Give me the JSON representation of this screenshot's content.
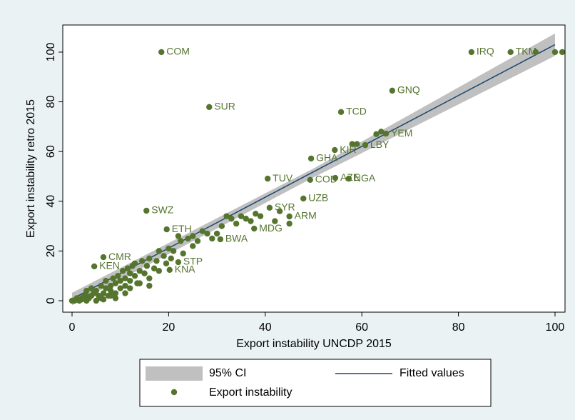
{
  "chart_data": {
    "type": "scatter",
    "x_label": "Export instability UNCDP 2015",
    "y_label": "Export instability retro 2015",
    "xlim": [
      -1.92,
      102.07
    ],
    "ylim": [
      -4.6,
      110.9
    ],
    "xticks": [
      0,
      20,
      40,
      60,
      80,
      100
    ],
    "yticks": [
      0,
      20,
      40,
      60,
      80,
      100
    ],
    "grid": false,
    "series": [
      {
        "name": "95% CI",
        "color": "#c0c0c0",
        "x": [
          0,
          50,
          100
        ],
        "lower": [
          -1.8,
          49.6,
          98.5
        ],
        "upper": [
          3.2,
          53.2,
          107.5
        ]
      },
      {
        "name": "Fitted values",
        "color": "#1a476f",
        "x": [
          0,
          100
        ],
        "values": [
          0.7,
          103
        ]
      },
      {
        "name": "Export instability",
        "color": "#55752f",
        "x": [
          18.5,
          28.4,
          82.7,
          90.8,
          66.3,
          55.7,
          54.4,
          49.5,
          60.7,
          65,
          40.5,
          49.3,
          54.5,
          57.3,
          47.9,
          15.4,
          40.9,
          45,
          37.7,
          30.7,
          19.6,
          6.5,
          4.6,
          22,
          20.2,
          0,
          0.5,
          1,
          1.5,
          2,
          2.5,
          3,
          3,
          3.5,
          4,
          4,
          4.5,
          5,
          5,
          5.5,
          6,
          6,
          6.5,
          7,
          7,
          7.5,
          8,
          8,
          8.5,
          9,
          9,
          9.5,
          10,
          10,
          10.5,
          11,
          11,
          11.5,
          12,
          12,
          12.5,
          13,
          13,
          13.5,
          14,
          14.5,
          15,
          15.5,
          16,
          16,
          17,
          17.5,
          18,
          18,
          19,
          19.5,
          20,
          20.5,
          21,
          22,
          22.5,
          23,
          24,
          25,
          25,
          26,
          27,
          28,
          29,
          30,
          31,
          32,
          33,
          34,
          35,
          36,
          37,
          38,
          39,
          42,
          43,
          45,
          58,
          59,
          63,
          64,
          96,
          100,
          101.5,
          3,
          1,
          2,
          6.5,
          8,
          9,
          11,
          12,
          14,
          16
        ],
        "values": [
          100,
          77.9,
          100,
          100,
          84.5,
          75.9,
          60.6,
          57.2,
          62.6,
          67.2,
          49.1,
          48.6,
          49.4,
          49.1,
          41.1,
          36.2,
          37.4,
          33.9,
          29,
          24.7,
          28.7,
          17.5,
          13.8,
          15.5,
          12.4,
          0,
          0,
          0.5,
          0,
          1,
          2,
          0,
          4,
          1,
          2,
          5,
          3,
          0,
          4,
          2,
          6,
          1,
          3,
          5,
          8,
          2,
          6,
          4,
          9,
          3,
          7,
          10,
          5,
          8,
          12,
          6,
          9,
          13,
          8,
          11,
          14,
          10,
          15,
          7,
          12,
          16,
          11,
          14,
          17,
          9,
          13,
          16,
          20,
          12,
          18,
          15,
          21,
          17,
          20,
          26,
          24,
          19,
          25,
          22,
          26,
          24,
          28,
          27,
          25,
          27,
          30,
          34,
          33,
          31,
          34,
          33,
          32,
          35,
          34,
          32,
          36,
          31,
          63,
          63,
          67,
          68,
          100,
          100,
          100,
          2,
          1,
          0.5,
          0.5,
          2,
          1,
          3,
          5,
          7,
          6
        ],
        "labels": [
          "COM",
          "SUR",
          "IRQ",
          "TKM",
          "GNQ",
          "TCD",
          "KIR",
          "GHA",
          "LBY",
          "YEM",
          "TUV",
          "COD",
          "AZE",
          "NGA",
          "UZB",
          "SWZ",
          "SYR",
          "ARM",
          "MDG",
          "BWA",
          "ETH",
          "CMR",
          "KEN",
          "STP",
          "KNA",
          null,
          null,
          null,
          null,
          null,
          null,
          null,
          null,
          null,
          null,
          null,
          null,
          null,
          null,
          null,
          null,
          null,
          null,
          null,
          null,
          null,
          null,
          null,
          null,
          null,
          null,
          null,
          null,
          null,
          null,
          null,
          null,
          null,
          null,
          null,
          null,
          null,
          null,
          null,
          null,
          null,
          null,
          null,
          null,
          null,
          null,
          null,
          null,
          null,
          null,
          null,
          null,
          null,
          null,
          null,
          null,
          null,
          null,
          null,
          null,
          null,
          null,
          null,
          null,
          null,
          null,
          null,
          null,
          null,
          null,
          null,
          null,
          null,
          null,
          null,
          null,
          null,
          null,
          null,
          null,
          null,
          null,
          null,
          null,
          null,
          null,
          null,
          null,
          null,
          null,
          null,
          null,
          null,
          null
        ]
      }
    ]
  }
}
